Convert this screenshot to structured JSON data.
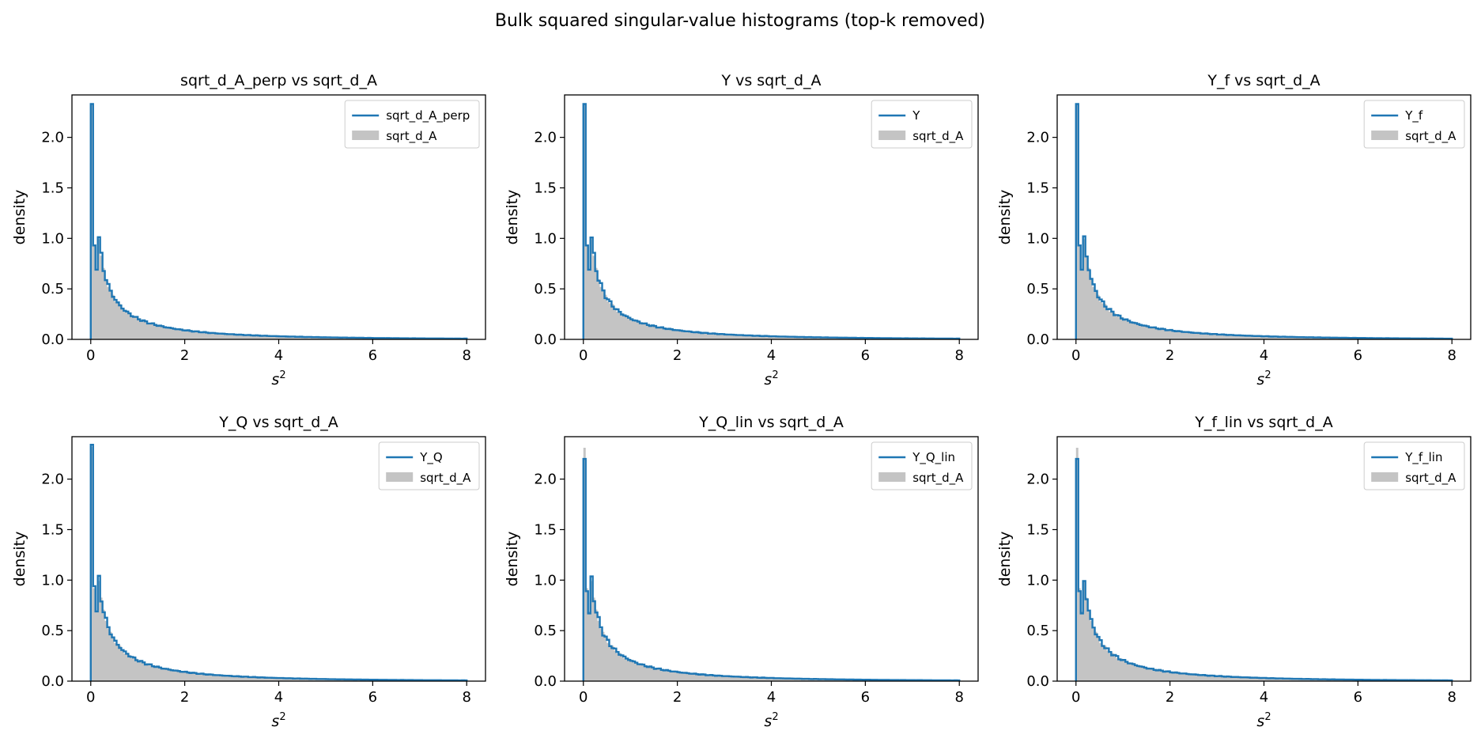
{
  "figure": {
    "title": "Bulk squared singular-value histograms (top-k removed)"
  },
  "colors": {
    "line": "#1f77b4",
    "reference_fill": "#c4c4c4"
  },
  "chart_data": [
    {
      "type": "histogram",
      "title": "sqrt_d_A_perp vs sqrt_d_A",
      "xlabel": "s",
      "xlabel_superscript": "2",
      "ylabel": "density",
      "xlim": [
        -0.4,
        8.4
      ],
      "ylim": [
        0,
        2.42
      ],
      "xticks": [
        0,
        2,
        4,
        6,
        8
      ],
      "yticks": [
        0.0,
        0.5,
        1.0,
        1.5,
        2.0
      ],
      "legend": "top-right",
      "series": [
        {
          "name": "sqrt_d_A_perp",
          "style": "step",
          "first_bins": [
            2.33,
            0.93,
            0.69
          ]
        },
        {
          "name": "sqrt_d_A",
          "style": "filled",
          "first_bins": [
            2.32,
            0.92,
            0.69
          ]
        }
      ]
    },
    {
      "type": "histogram",
      "title": "Y vs sqrt_d_A",
      "xlabel": "s",
      "xlabel_superscript": "2",
      "ylabel": "density",
      "xlim": [
        -0.4,
        8.4
      ],
      "ylim": [
        0,
        2.42
      ],
      "xticks": [
        0,
        2,
        4,
        6,
        8
      ],
      "yticks": [
        0.0,
        0.5,
        1.0,
        1.5,
        2.0
      ],
      "legend": "top-right",
      "series": [
        {
          "name": "Y",
          "style": "step",
          "first_bins": [
            2.33,
            0.93,
            0.69
          ]
        },
        {
          "name": "sqrt_d_A",
          "style": "filled",
          "first_bins": [
            2.32,
            0.92,
            0.69
          ]
        }
      ]
    },
    {
      "type": "histogram",
      "title": "Y_f vs sqrt_d_A",
      "xlabel": "s",
      "xlabel_superscript": "2",
      "ylabel": "density",
      "xlim": [
        -0.4,
        8.4
      ],
      "ylim": [
        0,
        2.42
      ],
      "xticks": [
        0,
        2,
        4,
        6,
        8
      ],
      "yticks": [
        0.0,
        0.5,
        1.0,
        1.5,
        2.0
      ],
      "legend": "top-right",
      "series": [
        {
          "name": "Y_f",
          "style": "step",
          "first_bins": [
            2.33,
            0.93,
            0.69
          ]
        },
        {
          "name": "sqrt_d_A",
          "style": "filled",
          "first_bins": [
            2.32,
            0.92,
            0.69
          ]
        }
      ]
    },
    {
      "type": "histogram",
      "title": "Y_Q vs sqrt_d_A",
      "xlabel": "s",
      "xlabel_superscript": "2",
      "ylabel": "density",
      "xlim": [
        -0.4,
        8.4
      ],
      "ylim": [
        0,
        2.42
      ],
      "xticks": [
        0,
        2,
        4,
        6,
        8
      ],
      "yticks": [
        0.0,
        0.5,
        1.0,
        1.5,
        2.0
      ],
      "legend": "top-right",
      "series": [
        {
          "name": "Y_Q",
          "style": "step",
          "first_bins": [
            2.34,
            0.94,
            0.69
          ]
        },
        {
          "name": "sqrt_d_A",
          "style": "filled",
          "first_bins": [
            2.32,
            0.92,
            0.69
          ]
        }
      ]
    },
    {
      "type": "histogram",
      "title": "Y_Q_lin vs sqrt_d_A",
      "xlabel": "s",
      "xlabel_superscript": "2",
      "ylabel": "density",
      "xlim": [
        -0.4,
        8.4
      ],
      "ylim": [
        0,
        2.42
      ],
      "xticks": [
        0,
        2,
        4,
        6,
        8
      ],
      "yticks": [
        0.0,
        0.5,
        1.0,
        1.5,
        2.0
      ],
      "legend": "top-right",
      "series": [
        {
          "name": "Y_Q_lin",
          "style": "step",
          "first_bins": [
            2.2,
            0.89,
            0.67
          ]
        },
        {
          "name": "sqrt_d_A",
          "style": "filled",
          "first_bins": [
            2.31,
            0.92,
            0.69
          ]
        }
      ]
    },
    {
      "type": "histogram",
      "title": "Y_f_lin vs sqrt_d_A",
      "xlabel": "s",
      "xlabel_superscript": "2",
      "ylabel": "density",
      "xlim": [
        -0.4,
        8.4
      ],
      "ylim": [
        0,
        2.42
      ],
      "xticks": [
        0,
        2,
        4,
        6,
        8
      ],
      "yticks": [
        0.0,
        0.5,
        1.0,
        1.5,
        2.0
      ],
      "legend": "top-right",
      "series": [
        {
          "name": "Y_f_lin",
          "style": "step",
          "first_bins": [
            2.2,
            0.89,
            0.67
          ]
        },
        {
          "name": "sqrt_d_A",
          "style": "filled",
          "first_bins": [
            2.31,
            0.92,
            0.69
          ]
        }
      ]
    }
  ]
}
